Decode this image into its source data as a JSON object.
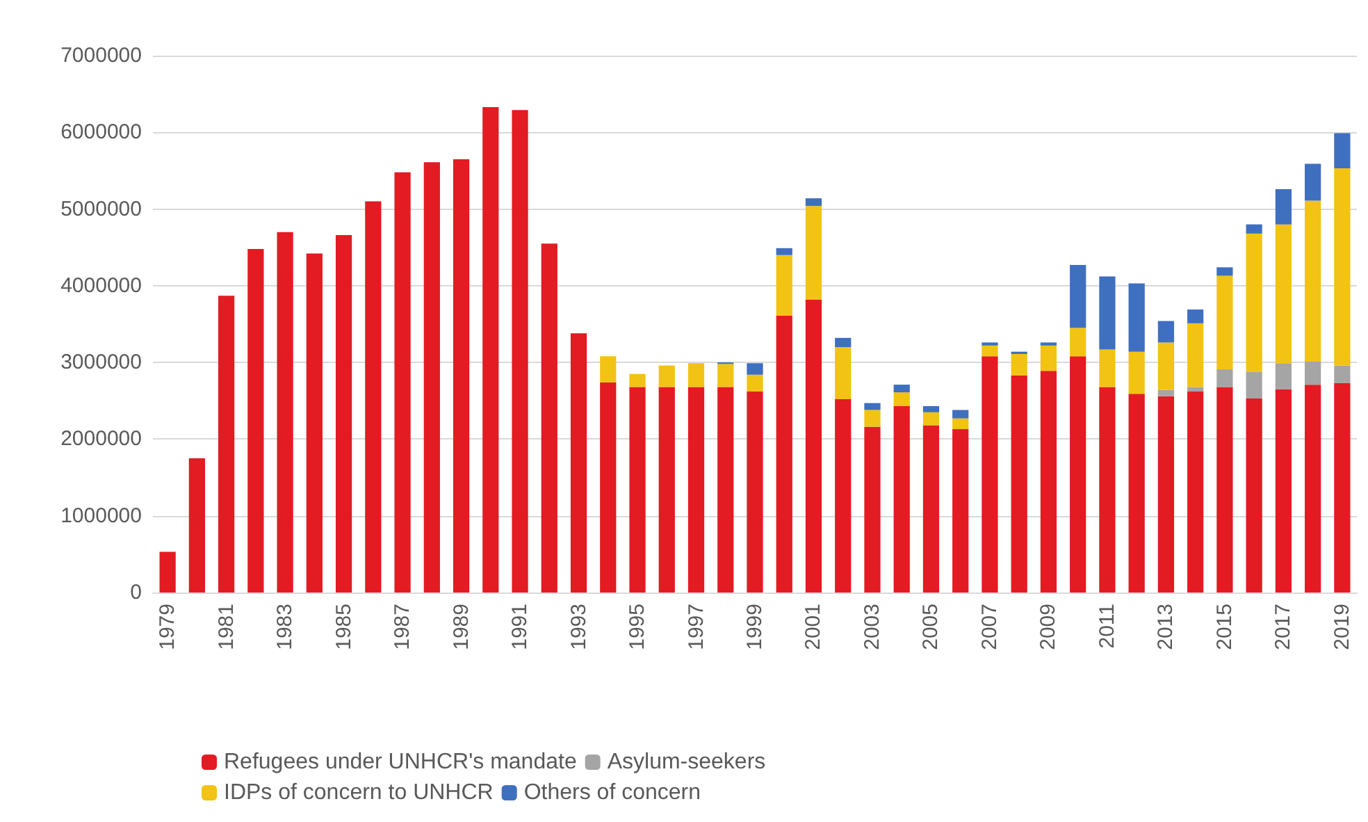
{
  "chart_data": {
    "type": "bar",
    "stacked": true,
    "categories": [
      "1979",
      null,
      "1981",
      null,
      "1983",
      null,
      "1985",
      null,
      "1987",
      null,
      "1989",
      null,
      "1991",
      null,
      "1993",
      null,
      "1995",
      null,
      "1997",
      null,
      "1999",
      null,
      "2001",
      null,
      "2003",
      null,
      "2005",
      null,
      "2007",
      null,
      "2009",
      null,
      "2011",
      null,
      "2013",
      null,
      "2015",
      null,
      "2017",
      null,
      "2019"
    ],
    "series": [
      {
        "name": "Refugees under UNHCR's mandate",
        "color": "#e31b23",
        "values": [
          530000,
          1750000,
          3870000,
          4480000,
          4700000,
          4420000,
          4660000,
          5100000,
          5480000,
          5610000,
          5650000,
          6330000,
          6290000,
          4550000,
          3380000,
          2740000,
          2680000,
          2680000,
          2680000,
          2680000,
          2620000,
          3610000,
          3820000,
          2520000,
          2160000,
          2430000,
          2180000,
          2130000,
          3080000,
          2830000,
          2890000,
          3080000,
          2680000,
          2590000,
          2560000,
          2620000,
          2680000,
          2530000,
          2650000,
          2710000,
          2730000
        ]
      },
      {
        "name": "Asylum-seekers",
        "color": "#a5a5a5",
        "values": [
          0,
          0,
          0,
          0,
          0,
          0,
          0,
          0,
          0,
          0,
          0,
          0,
          0,
          0,
          0,
          0,
          0,
          0,
          0,
          0,
          0,
          0,
          0,
          0,
          0,
          0,
          0,
          0,
          0,
          0,
          0,
          0,
          0,
          0,
          80000,
          60000,
          230000,
          350000,
          340000,
          300000,
          230000
        ]
      },
      {
        "name": "IDPs of concern to UNHCR",
        "color": "#f2c314",
        "values": [
          0,
          0,
          0,
          0,
          0,
          0,
          0,
          0,
          0,
          0,
          0,
          0,
          0,
          0,
          0,
          340000,
          170000,
          280000,
          310000,
          300000,
          220000,
          790000,
          1220000,
          680000,
          220000,
          180000,
          170000,
          140000,
          140000,
          280000,
          330000,
          370000,
          490000,
          550000,
          620000,
          830000,
          1220000,
          1800000,
          1810000,
          2100000,
          2570000
        ]
      },
      {
        "name": "Others of concern",
        "color": "#3f6fbf",
        "values": [
          0,
          0,
          0,
          0,
          0,
          0,
          0,
          0,
          0,
          0,
          0,
          0,
          0,
          0,
          0,
          0,
          0,
          0,
          0,
          20000,
          150000,
          90000,
          100000,
          120000,
          90000,
          100000,
          80000,
          110000,
          40000,
          30000,
          40000,
          820000,
          950000,
          890000,
          280000,
          180000,
          110000,
          120000,
          460000,
          480000,
          460000
        ]
      }
    ],
    "ylim": [
      0,
      7000000
    ],
    "yticks": [
      0,
      1000000,
      2000000,
      3000000,
      4000000,
      5000000,
      6000000,
      7000000
    ],
    "grid": "y",
    "legend": "bottom left"
  }
}
